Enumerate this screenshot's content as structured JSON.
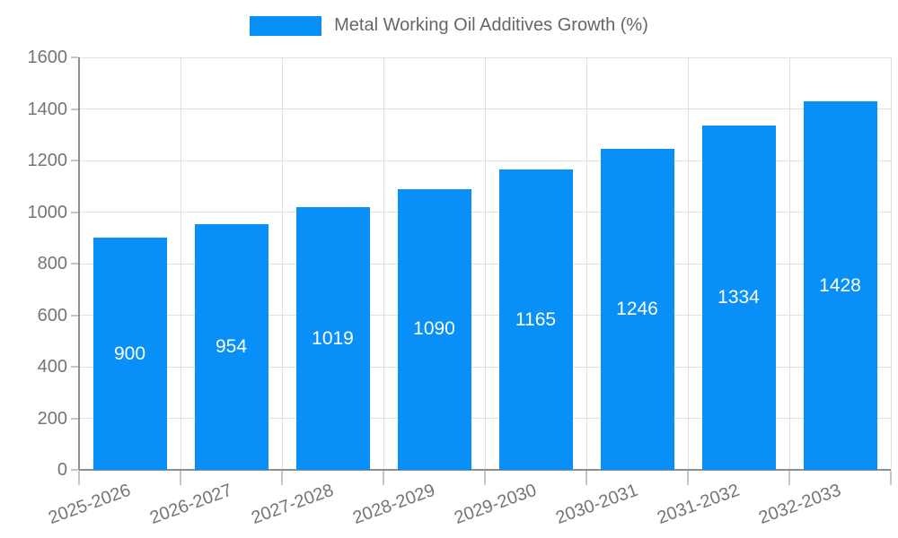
{
  "chart_data": {
    "type": "bar",
    "title": "Metal Working Oil Additives Growth (%)",
    "categories": [
      "2025-2026",
      "2026-2027",
      "2027-2028",
      "2028-2029",
      "2029-2030",
      "2030-2031",
      "2031-2032",
      "2032-2033"
    ],
    "values": [
      900,
      954,
      1019,
      1090,
      1165,
      1246,
      1334,
      1428
    ],
    "ylim": [
      0,
      1600
    ],
    "ytick_step": 200,
    "ytick_labels": [
      "0",
      "200",
      "400",
      "600",
      "800",
      "1000",
      "1200",
      "1400",
      "1600"
    ],
    "grid": "horizontal and vertical",
    "legend_position": "top-center",
    "xlabel": "",
    "ylabel": ""
  },
  "colors": {
    "bar": "#0890f8",
    "value_label": "#ffffff",
    "grid": "#e0e0e0",
    "axis": "#8e8e8e",
    "tick": "#c6c6c6",
    "axis_label": "#757575",
    "legend_text": "#666666",
    "background": "#ffffff"
  }
}
